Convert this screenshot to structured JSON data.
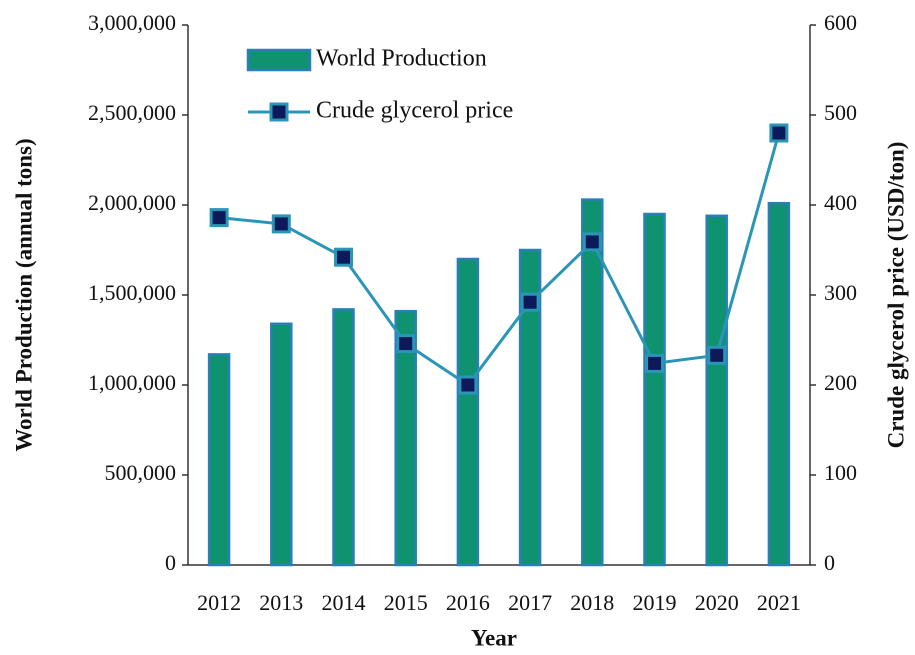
{
  "chart_data": {
    "type": "bar",
    "x_label": "Year",
    "y_label": "World Production (annual tons)",
    "y2_label": "Crude glycerol price (USD/ton)",
    "categories": [
      "2012",
      "2013",
      "2014",
      "2015",
      "2016",
      "2017",
      "2018",
      "2019",
      "2020",
      "2021"
    ],
    "series": [
      {
        "name": "World Production",
        "type": "bar",
        "color": "#0e9270",
        "edge_color": "#2a7fb8",
        "values": [
          1170000,
          1340000,
          1420000,
          1410000,
          1700000,
          1750000,
          2030000,
          1950000,
          1940000,
          2010000
        ]
      },
      {
        "name": "Crude glycerol price",
        "type": "line",
        "axis": "y2",
        "color": "#2b95b8",
        "marker_color": "#0c1a5a",
        "values": [
          386,
          379,
          342,
          246,
          200,
          292,
          359,
          224,
          233,
          480
        ]
      }
    ],
    "ylim": [
      0,
      3000000
    ],
    "yticks": [
      0,
      {
        "value": 500000,
        "label": "500,000"
      },
      {
        "value": 1000000,
        "label": "1,000,000"
      },
      {
        "value": 1500000,
        "label": "1,500,000"
      },
      {
        "value": 2000000,
        "label": "2,000,000"
      },
      {
        "value": 2500000,
        "label": "2,500,000"
      },
      {
        "value": 3000000,
        "label": "3,000,000"
      }
    ],
    "y2lim": [
      0,
      600
    ],
    "y2ticks": [
      0,
      100,
      200,
      300,
      400,
      500,
      600
    ],
    "legend": "upper left"
  }
}
